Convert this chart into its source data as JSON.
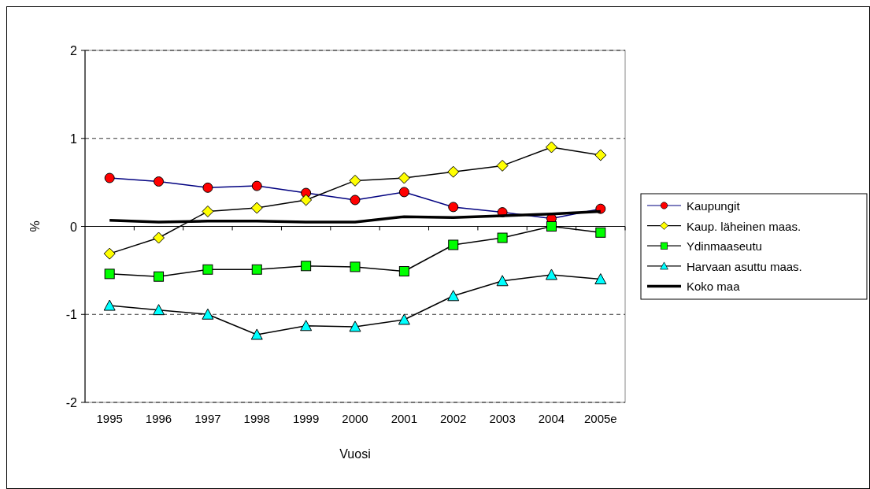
{
  "chart_data": {
    "type": "line",
    "xlabel": "Vuosi",
    "ylabel": "%",
    "categories": [
      "1995",
      "1996",
      "1997",
      "1998",
      "1999",
      "2000",
      "2001",
      "2002",
      "2003",
      "2004",
      "2005e"
    ],
    "series": [
      {
        "name": "Kaupungit",
        "color": "#ff0000",
        "marker": "circle",
        "values": [
          0.55,
          0.51,
          0.44,
          0.46,
          0.38,
          0.3,
          0.39,
          0.22,
          0.16,
          0.09,
          0.2
        ]
      },
      {
        "name": "Kaup. läheinen maas.",
        "color": "#ffff00",
        "marker": "diamond",
        "values": [
          -0.31,
          -0.13,
          0.17,
          0.21,
          0.3,
          0.52,
          0.55,
          0.62,
          0.69,
          0.9,
          0.81
        ]
      },
      {
        "name": "Ydinmaaseutu",
        "color": "#00ff00",
        "marker": "square",
        "values": [
          -0.54,
          -0.57,
          -0.49,
          -0.49,
          -0.45,
          -0.46,
          -0.51,
          -0.21,
          -0.13,
          0.0,
          -0.07
        ]
      },
      {
        "name": "Harvaan asuttu maas.",
        "color": "#00ffff",
        "marker": "triangle",
        "values": [
          -0.9,
          -0.95,
          -1.0,
          -1.23,
          -1.13,
          -1.14,
          -1.06,
          -0.79,
          -0.62,
          -0.55,
          -0.6
        ]
      },
      {
        "name": "Koko maa",
        "color": "#000000",
        "marker": "none",
        "values": [
          0.07,
          0.05,
          0.06,
          0.06,
          0.05,
          0.05,
          0.11,
          0.1,
          0.12,
          0.14,
          0.17
        ]
      }
    ],
    "ylim": [
      -2,
      2
    ],
    "yticks": [
      -2,
      -1,
      0,
      1,
      2
    ],
    "grid": "y",
    "line_style": "solid",
    "legend": "right"
  }
}
